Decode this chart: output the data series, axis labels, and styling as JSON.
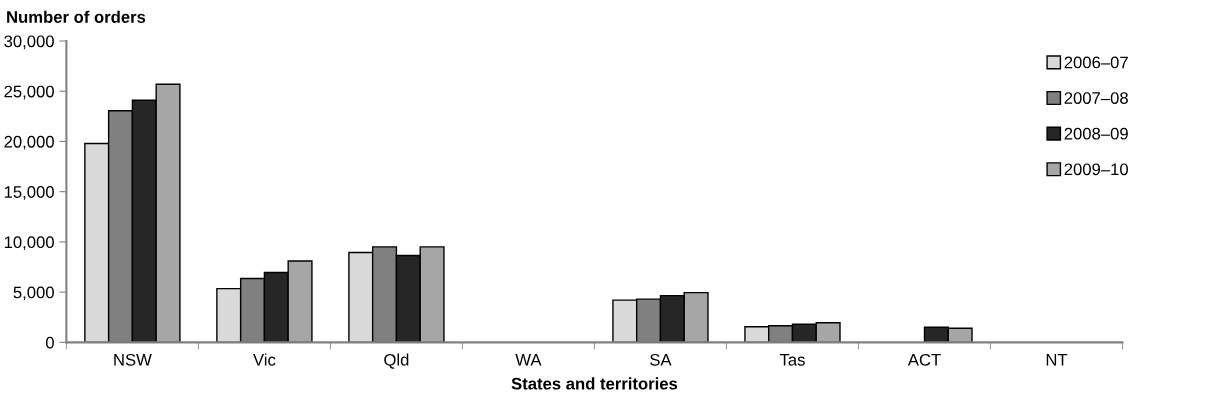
{
  "chart_data": {
    "type": "bar",
    "ylabel": "Number of orders",
    "xlabel": "States and territories",
    "categories": [
      "NSW",
      "Vic",
      "Qld",
      "WA",
      "SA",
      "Tas",
      "ACT",
      "NT"
    ],
    "series": [
      {
        "name": "2006–07",
        "color": "#d9d9d9",
        "values": [
          19800,
          5350,
          8950,
          null,
          4200,
          1550,
          null,
          null
        ]
      },
      {
        "name": "2007–08",
        "color": "#808080",
        "values": [
          23050,
          6350,
          9500,
          null,
          4300,
          1650,
          null,
          null
        ]
      },
      {
        "name": "2008–09",
        "color": "#262626",
        "values": [
          24100,
          6950,
          8650,
          null,
          4650,
          1800,
          1500,
          null
        ]
      },
      {
        "name": "2009–10",
        "color": "#a6a6a6",
        "values": [
          25700,
          8100,
          9500,
          null,
          4950,
          1950,
          1400,
          null
        ]
      }
    ],
    "ylim": [
      0,
      30000
    ],
    "yticks": [
      {
        "value": 0,
        "label": "0"
      },
      {
        "value": 5000,
        "label": "5,000"
      },
      {
        "value": 10000,
        "label": "10,000"
      },
      {
        "value": 15000,
        "label": "15,000"
      },
      {
        "value": 20000,
        "label": "20,000"
      },
      {
        "value": 25000,
        "label": "25,000"
      },
      {
        "value": 30000,
        "label": "30,000"
      }
    ],
    "grid": false,
    "legend": "top right"
  }
}
